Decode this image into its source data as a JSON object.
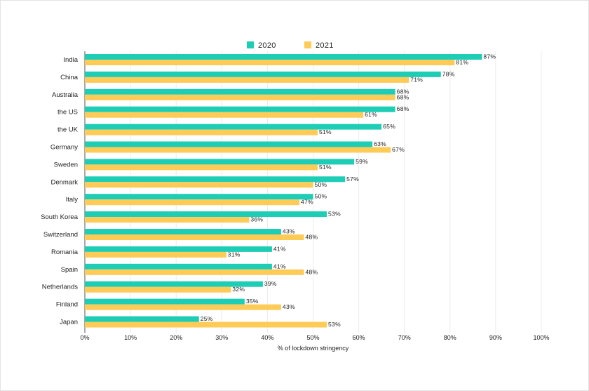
{
  "chart_data": {
    "type": "bar",
    "orientation": "horizontal",
    "categories": [
      "India",
      "China",
      "Australia",
      "the US",
      "the UK",
      "Germany",
      "Sweden",
      "Denmark",
      "Italy",
      "South Korea",
      "Switzerland",
      "Romania",
      "Spain",
      "Netherlands",
      "Finland",
      "Japan"
    ],
    "series": [
      {
        "name": "2020",
        "color": "#1ECDB5",
        "values": [
          87,
          78,
          68,
          68,
          65,
          63,
          59,
          57,
          50,
          53,
          43,
          41,
          41,
          39,
          35,
          25
        ],
        "labels": [
          "87%",
          "78%",
          "68%",
          "68%",
          "65%",
          "63%",
          "59%",
          "57%",
          "50%",
          "53%",
          "43%",
          "41%",
          "41%",
          "39%",
          "35%",
          "25%"
        ]
      },
      {
        "name": "2021",
        "color": "#FFCB57",
        "values": [
          81,
          71,
          68,
          61,
          51,
          67,
          51,
          50,
          47,
          36,
          48,
          31,
          48,
          32,
          43,
          53
        ],
        "labels": [
          "81%",
          "71%",
          "68%",
          "61%",
          "51%",
          "67%",
          "51%",
          "50%",
          "47%",
          "36%",
          "48%",
          "31%",
          "48%",
          "32%",
          "43%",
          "53%"
        ]
      }
    ],
    "xlabel": "% of lockdown stringency",
    "ylabel": "",
    "xlim": [
      0,
      100
    ],
    "xticks": [
      0,
      10,
      20,
      30,
      40,
      50,
      60,
      70,
      80,
      90,
      100
    ],
    "xtick_labels": [
      "0%",
      "10%",
      "20%",
      "30%",
      "40%",
      "50%",
      "60%",
      "70%",
      "80%",
      "90%",
      "100%"
    ],
    "grid": "vertical",
    "legend": "top-center"
  }
}
